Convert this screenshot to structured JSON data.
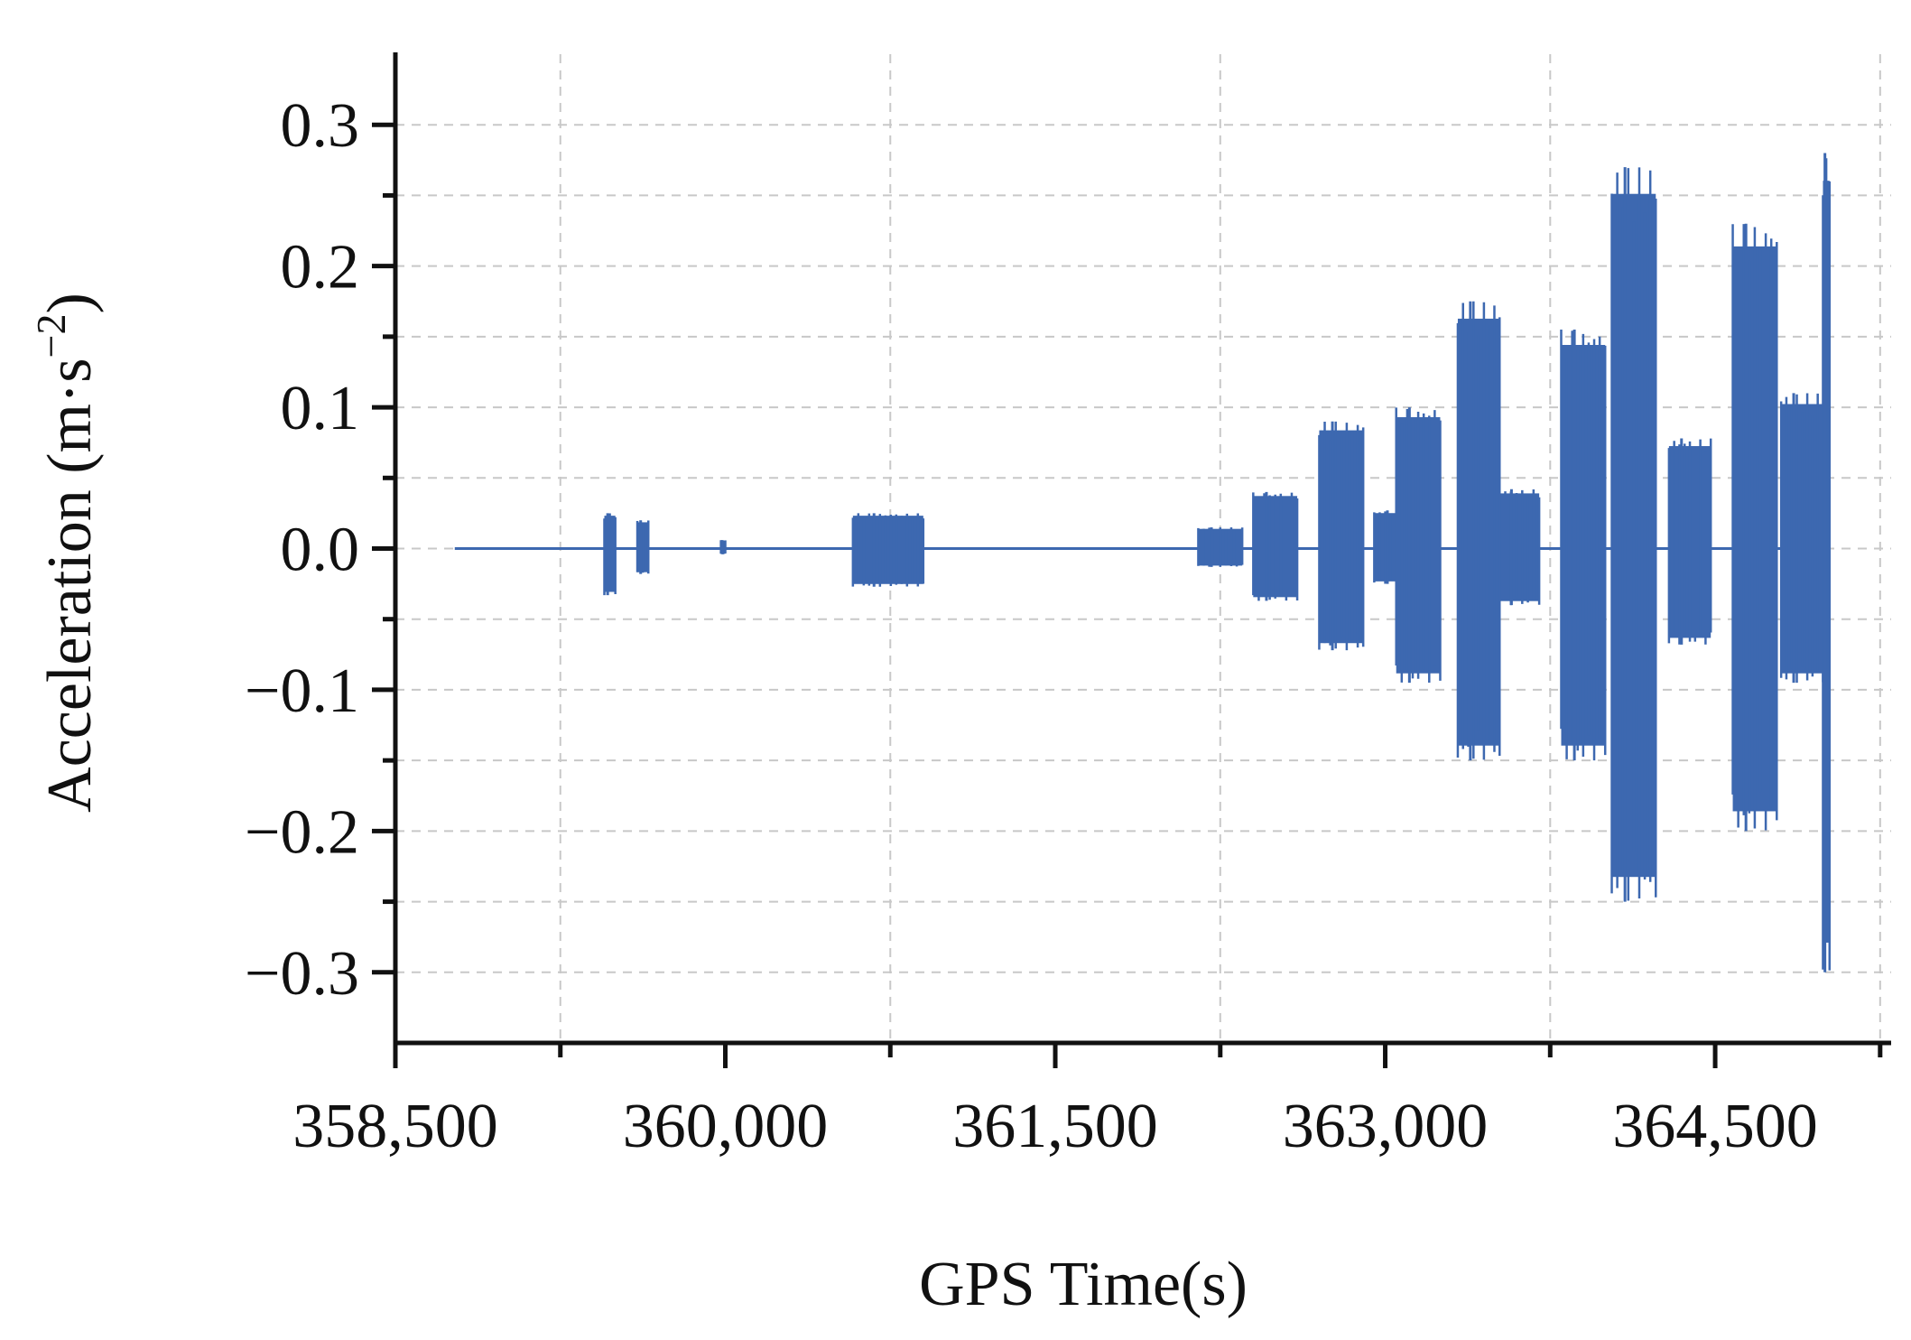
{
  "chart_data": {
    "type": "line",
    "xlabel": "GPS Time(s)",
    "ylabel_main": "Acceleration (m·s",
    "ylabel_sup": "−2",
    "ylabel_close": ")",
    "xlim": [
      358500,
      365300
    ],
    "ylim": [
      -0.35,
      0.35
    ],
    "x_ticks": [
      358500,
      360000,
      361500,
      363000,
      364500
    ],
    "x_tick_labels": [
      "358,500",
      "360,000",
      "361,500",
      "363,000",
      "364,500"
    ],
    "x_minor_ticks": [
      359250,
      360750,
      362250,
      363750,
      365250
    ],
    "y_ticks": [
      0.3,
      0.2,
      0.1,
      0.0,
      -0.1,
      -0.2,
      -0.3
    ],
    "y_tick_labels": [
      "0.3",
      "0.2",
      "0.1",
      "0.0",
      "−0.1",
      "−0.2",
      "−0.3"
    ],
    "y_minor_ticks": [
      0.25,
      0.15,
      0.05,
      -0.05,
      -0.15,
      -0.25
    ],
    "grid": true,
    "series_color": "#3d68b0",
    "baseline": {
      "x_start": 358770,
      "x_end": 365020,
      "y": 0.0
    },
    "bursts": [
      {
        "x_start": 359450,
        "x_end": 359500,
        "ymax": 0.025,
        "ymin": -0.033
      },
      {
        "x_start": 359600,
        "x_end": 359650,
        "ymax": 0.02,
        "ymin": -0.018
      },
      {
        "x_start": 359980,
        "x_end": 360000,
        "ymax": 0.006,
        "ymin": -0.004
      },
      {
        "x_start": 360580,
        "x_end": 360900,
        "ymax": 0.025,
        "ymin": -0.027
      },
      {
        "x_start": 362150,
        "x_end": 362350,
        "ymax": 0.015,
        "ymin": -0.013
      },
      {
        "x_start": 362400,
        "x_end": 362600,
        "ymax": 0.04,
        "ymin": -0.037
      },
      {
        "x_start": 362700,
        "x_end": 362900,
        "ymax": 0.09,
        "ymin": -0.072
      },
      {
        "x_start": 362950,
        "x_end": 363150,
        "ymax": 0.027,
        "ymin": -0.025
      },
      {
        "x_start": 363050,
        "x_end": 363250,
        "ymax": 0.1,
        "ymin": -0.095
      },
      {
        "x_start": 363330,
        "x_end": 363520,
        "ymax": 0.175,
        "ymin": -0.15
      },
      {
        "x_start": 363520,
        "x_end": 363700,
        "ymax": 0.042,
        "ymin": -0.04
      },
      {
        "x_start": 363800,
        "x_end": 364000,
        "ymax": 0.155,
        "ymin": -0.15
      },
      {
        "x_start": 364030,
        "x_end": 364230,
        "ymax": 0.27,
        "ymin": -0.25
      },
      {
        "x_start": 364290,
        "x_end": 364480,
        "ymax": 0.078,
        "ymin": -0.068
      },
      {
        "x_start": 364580,
        "x_end": 364780,
        "ymax": 0.23,
        "ymin": -0.2
      },
      {
        "x_start": 364800,
        "x_end": 364990,
        "ymax": 0.11,
        "ymin": -0.095
      },
      {
        "x_start": 364990,
        "x_end": 365020,
        "ymax": 0.28,
        "ymin": -0.3
      }
    ]
  }
}
